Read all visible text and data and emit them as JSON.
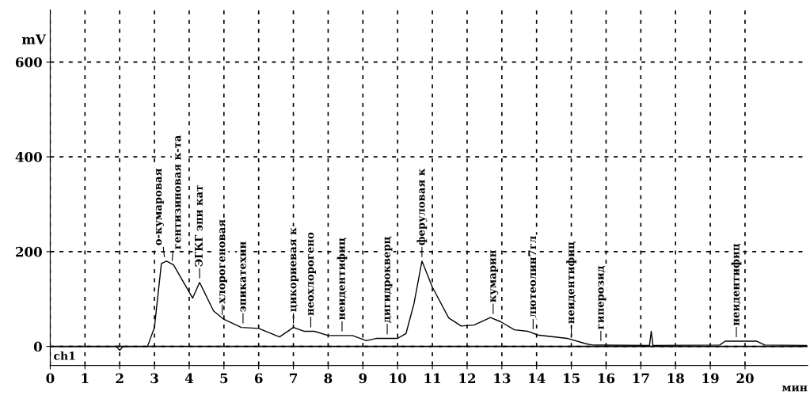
{
  "chart_data": {
    "type": "line",
    "xlabel": "мин",
    "ylabel": "mV",
    "xlim": [
      0,
      21.8
    ],
    "ylim": [
      -40,
      710
    ],
    "xticks": [
      0,
      1,
      2,
      3,
      4,
      5,
      6,
      7,
      8,
      9,
      10,
      11,
      12,
      13,
      14,
      15,
      16,
      17,
      18,
      19,
      20
    ],
    "yticks": [
      0,
      200,
      400,
      600
    ],
    "grid": true,
    "line_style": "solid",
    "marker": "none",
    "ref_lines": [
      {
        "axis": "y",
        "value": 0,
        "color": "#000000",
        "line_style": "solid"
      }
    ],
    "series": [
      {
        "color": "#000000",
        "x": [
          0,
          1.9,
          2.0,
          2.1,
          2.8,
          3.0,
          3.2,
          3.35,
          3.55,
          4.1,
          4.3,
          4.7,
          5.0,
          5.5,
          6.0,
          6.6,
          7.0,
          7.3,
          7.6,
          8.0,
          8.7,
          9.1,
          9.4,
          10.0,
          10.24,
          10.47,
          10.7,
          11.0,
          11.47,
          11.83,
          12.2,
          12.67,
          12.97,
          13.36,
          13.74,
          14.04,
          14.88,
          15.4,
          15.6,
          17.25,
          17.3,
          17.35,
          19.27,
          19.43,
          20.34,
          20.57,
          21.77
        ],
        "values": [
          0,
          0,
          -8,
          0,
          0,
          40,
          175,
          180,
          172,
          102,
          135,
          75,
          57,
          40,
          38,
          20,
          40,
          32,
          32,
          23,
          23,
          12,
          17,
          17,
          27,
          90,
          180,
          125,
          60,
          43,
          45,
          61,
          52,
          35,
          32,
          24,
          17,
          6,
          3,
          2,
          32,
          2,
          3,
          11,
          11,
          3,
          2
        ]
      }
    ],
    "annotations": [
      "ch1",
      {
        "text": "о-кумаровая",
        "x": 3.3,
        "y": 180
      },
      {
        "text": "гентизиновая к-та",
        "x": 3.5,
        "y": 172
      },
      {
        "text": "ЭГКГ эпи кат",
        "x": 4.3,
        "y": 135
      },
      {
        "text": "хлорогеновая",
        "x": 4.95,
        "y": 58
      },
      {
        "text": "эпикатехин",
        "x": 5.55,
        "y": 40
      },
      {
        "text": "цикориевая к",
        "x": 7.0,
        "y": 40
      },
      {
        "text": "неохлорогено",
        "x": 7.5,
        "y": 32
      },
      {
        "text": "неидентифиц",
        "x": 8.4,
        "y": 23
      },
      {
        "text": "дигидрокверц",
        "x": 9.7,
        "y": 17
      },
      {
        "text": "феруловая к",
        "x": 10.7,
        "y": 180
      },
      {
        "text": "кумарин",
        "x": 12.75,
        "y": 60
      },
      {
        "text": "лютеолин7гл",
        "x": 13.9,
        "y": 28
      },
      {
        "text": "неидентифиц",
        "x": 15.0,
        "y": 15
      },
      {
        "text": "гиперозид",
        "x": 15.85,
        "y": 3
      },
      {
        "text": "неидентифиц",
        "x": 19.75,
        "y": 11
      }
    ]
  }
}
